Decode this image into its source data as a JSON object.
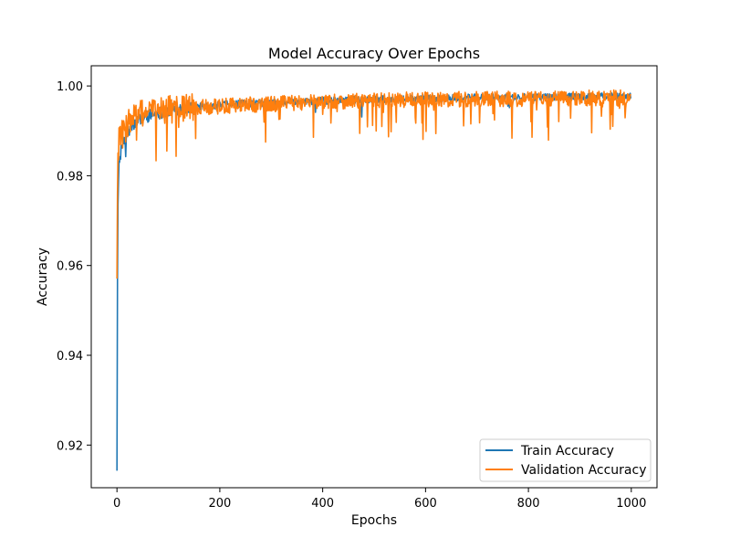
{
  "chart_data": {
    "type": "line",
    "title": "Model Accuracy Over Epochs",
    "xlabel": "Epochs",
    "ylabel": "Accuracy",
    "xlim": [
      -50,
      1050
    ],
    "ylim": [
      0.9105,
      1.0045
    ],
    "xticks": [
      0,
      200,
      400,
      600,
      800,
      1000
    ],
    "yticks": [
      0.92,
      0.94,
      0.96,
      0.98,
      1.0
    ],
    "ytick_labels": [
      "0.92",
      "0.94",
      "0.96",
      "0.98",
      "1.00"
    ],
    "grid": false,
    "legend_position": "bottom-right",
    "epochs": 1000,
    "series": [
      {
        "name": "Train Accuracy",
        "color": "#1f77b4",
        "values_sampled": {
          "x": [
            1,
            2,
            3,
            5,
            8,
            12,
            20,
            30,
            50,
            80,
            120,
            200,
            300,
            400,
            500,
            600,
            700,
            800,
            900,
            1000
          ],
          "y": [
            0.9143,
            0.957,
            0.975,
            0.982,
            0.985,
            0.987,
            0.989,
            0.991,
            0.993,
            0.994,
            0.995,
            0.9958,
            0.9963,
            0.9967,
            0.997,
            0.9972,
            0.9974,
            0.9975,
            0.9976,
            0.9977
          ]
        }
      },
      {
        "name": "Validation Accuracy",
        "color": "#ff7f0e",
        "values_sampled": {
          "x": [
            1,
            2,
            3,
            5,
            8,
            12,
            20,
            30,
            50,
            80,
            120,
            200,
            300,
            400,
            500,
            600,
            700,
            800,
            900,
            1000
          ],
          "y": [
            0.9571,
            0.976,
            0.985,
            0.988,
            0.99,
            0.989,
            0.991,
            0.993,
            0.994,
            0.9945,
            0.995,
            0.9955,
            0.996,
            0.9965,
            0.9968,
            0.997,
            0.997,
            0.9972,
            0.9973,
            0.9975
          ]
        }
      }
    ]
  }
}
